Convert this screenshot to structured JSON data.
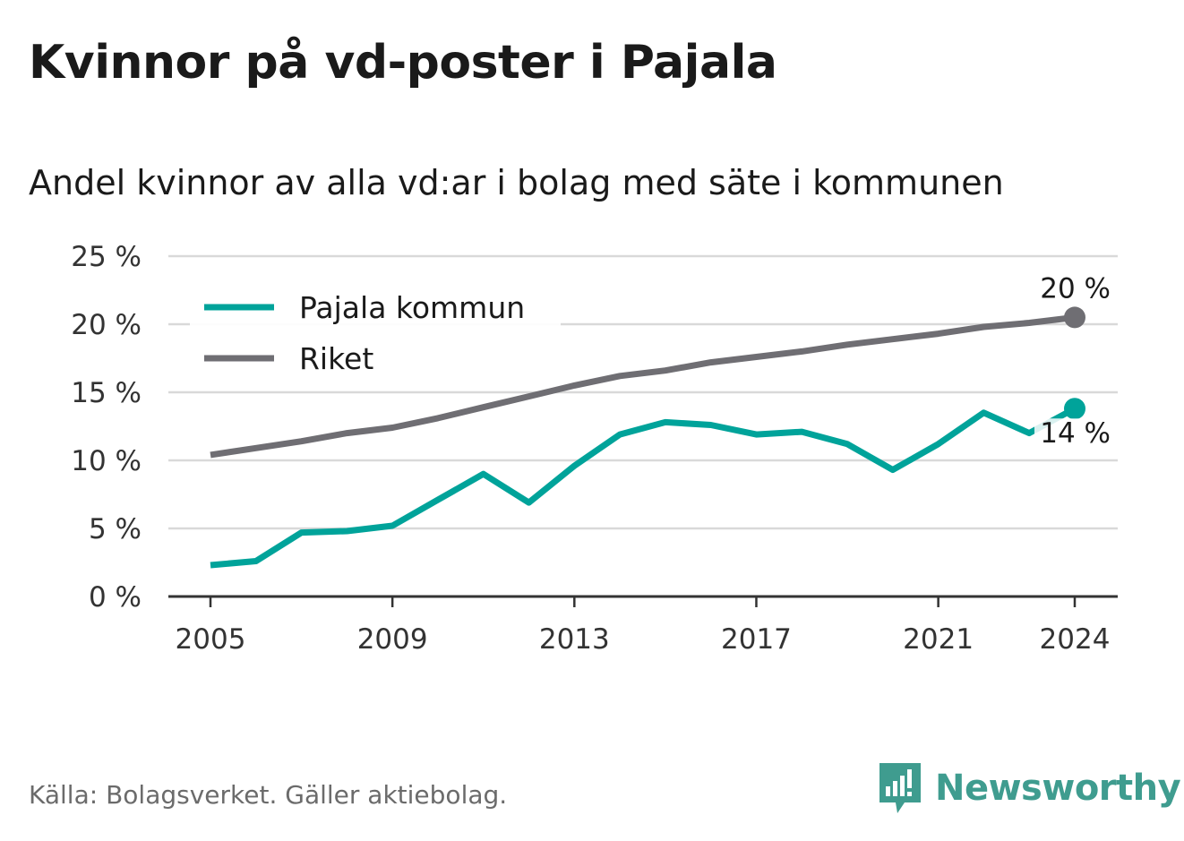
{
  "title": "Kvinnor på vd-poster i Pajala",
  "subtitle": "Andel kvinnor av alla vd:ar i bolag med säte i kommunen",
  "source": "Källa: Bolagsverket. Gäller aktiebolag.",
  "brand": "Newsworthy",
  "colors": {
    "pajala": "#00a39a",
    "riket": "#6f6e73",
    "grid": "#d9d9d9",
    "axis": "#333333",
    "brand": "#3f9c8f"
  },
  "chart_data": {
    "type": "line",
    "title": "Kvinnor på vd-poster i Pajala",
    "subtitle": "Andel kvinnor av alla vd:ar i bolag med säte i kommunen",
    "xlabel": "",
    "ylabel": "",
    "x": [
      2005,
      2006,
      2007,
      2008,
      2009,
      2010,
      2011,
      2012,
      2013,
      2014,
      2015,
      2016,
      2017,
      2018,
      2019,
      2020,
      2021,
      2022,
      2023,
      2024
    ],
    "x_ticks": [
      "2005",
      "2009",
      "2013",
      "2017",
      "2021",
      "2024"
    ],
    "y_ticks": [
      "0 %",
      "5 %",
      "10 %",
      "15 %",
      "20 %",
      "25 %"
    ],
    "ylim": [
      0,
      25
    ],
    "grid": true,
    "legend": "top-left",
    "series": [
      {
        "name": "Pajala kommun",
        "values": [
          2.3,
          2.6,
          4.7,
          4.8,
          5.2,
          7.1,
          9.0,
          6.9,
          9.6,
          11.9,
          12.8,
          12.6,
          11.9,
          12.1,
          11.2,
          9.3,
          11.2,
          13.5,
          12.0,
          13.8
        ],
        "end_label": "14 %"
      },
      {
        "name": "Riket",
        "values": [
          10.4,
          10.9,
          11.4,
          12.0,
          12.4,
          13.1,
          13.9,
          14.7,
          15.5,
          16.2,
          16.6,
          17.2,
          17.6,
          18.0,
          18.5,
          18.9,
          19.3,
          19.8,
          20.1,
          20.5
        ],
        "end_label": "20 %"
      }
    ]
  }
}
